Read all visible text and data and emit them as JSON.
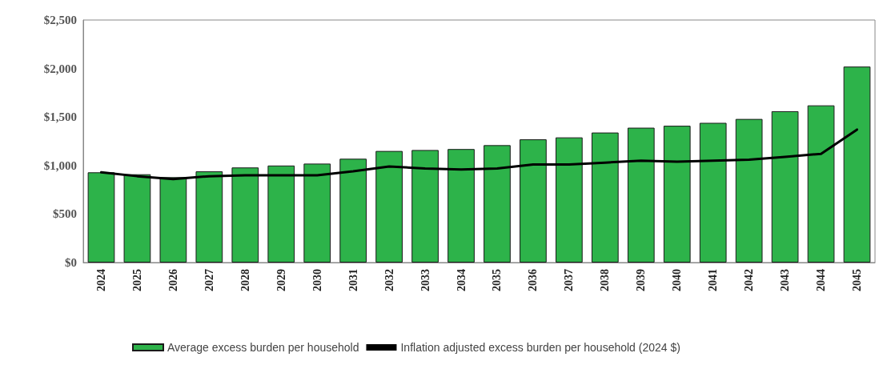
{
  "chart_data": {
    "type": "bar",
    "categories": [
      "2024",
      "2025",
      "2026",
      "2027",
      "2028",
      "2029",
      "2030",
      "2031",
      "2032",
      "2033",
      "2034",
      "2035",
      "2036",
      "2037",
      "2038",
      "2039",
      "2040",
      "2041",
      "2042",
      "2043",
      "2044",
      "2045"
    ],
    "series": [
      {
        "name": "Average excess burden per household",
        "color": "#2db34a",
        "values": [
          930,
          910,
          880,
          940,
          980,
          1000,
          1020,
          1070,
          1150,
          1160,
          1170,
          1210,
          1270,
          1290,
          1340,
          1390,
          1410,
          1440,
          1480,
          1560,
          1620,
          2020
        ]
      },
      {
        "name": "Inflation adjusted excess burden per household (2024 $)",
        "type": "line",
        "color": "#000000",
        "values": [
          930,
          890,
          860,
          890,
          900,
          900,
          900,
          940,
          990,
          970,
          960,
          970,
          1010,
          1010,
          1030,
          1050,
          1040,
          1050,
          1060,
          1090,
          1120,
          1370
        ]
      }
    ],
    "ylim": [
      0,
      2500
    ],
    "yticks": [
      {
        "value": 0,
        "label": "$0"
      },
      {
        "value": 500,
        "label": "$500"
      },
      {
        "value": 1000,
        "label": "$1,000"
      },
      {
        "value": 1500,
        "label": "$1,500"
      },
      {
        "value": 2000,
        "label": "$2,000"
      },
      {
        "value": 2500,
        "label": "$2,500"
      }
    ],
    "grid": false,
    "legend": "bottom left",
    "marker": "none",
    "line_style": "solid"
  }
}
